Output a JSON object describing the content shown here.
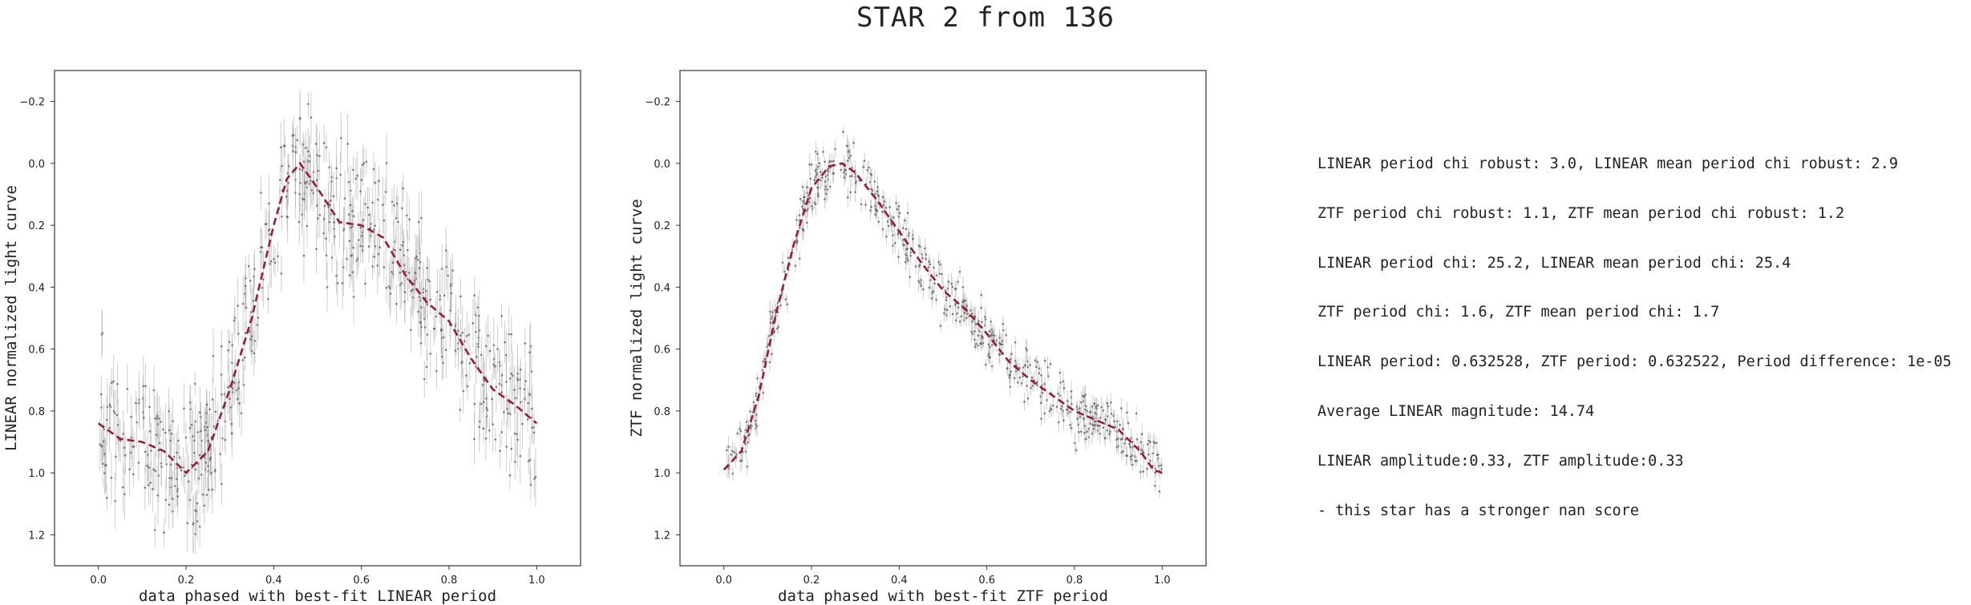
{
  "figure": {
    "title": "STAR 2 from 136"
  },
  "chart_data": [
    {
      "type": "scatter",
      "xlabel": "data phased with best-fit LINEAR period",
      "ylabel": "LINEAR normalized light curve",
      "xlim": [
        -0.1,
        1.1
      ],
      "ylim": [
        1.3,
        -0.3
      ],
      "y_inverted": true,
      "x_ticks": [
        "0.0",
        "0.2",
        "0.4",
        "0.6",
        "0.8",
        "1.0"
      ],
      "y_ticks": [
        "−0.2",
        "0.0",
        "0.2",
        "0.4",
        "0.6",
        "0.8",
        "1.0",
        "1.2"
      ],
      "grid": false,
      "colors": {
        "points": "#555555",
        "errorbars": "#aaaaaa",
        "fit": "#9b1b30"
      },
      "fit_curve": {
        "x": [
          0.0,
          0.05,
          0.1,
          0.15,
          0.2,
          0.25,
          0.3,
          0.35,
          0.4,
          0.43,
          0.46,
          0.5,
          0.55,
          0.6,
          0.65,
          0.7,
          0.75,
          0.8,
          0.85,
          0.9,
          0.95,
          1.0
        ],
        "y": [
          0.84,
          0.89,
          0.9,
          0.93,
          1.0,
          0.93,
          0.73,
          0.5,
          0.2,
          0.05,
          0.0,
          0.08,
          0.19,
          0.2,
          0.24,
          0.36,
          0.45,
          0.51,
          0.63,
          0.73,
          0.78,
          0.84
        ]
      },
      "scatter_band": {
        "x": [
          0.0,
          0.05,
          0.1,
          0.15,
          0.2,
          0.25,
          0.3,
          0.35,
          0.4,
          0.43,
          0.46,
          0.5,
          0.55,
          0.6,
          0.65,
          0.7,
          0.75,
          0.8,
          0.85,
          0.9,
          0.95,
          1.0
        ],
        "y": [
          0.84,
          0.89,
          0.9,
          0.93,
          1.0,
          0.93,
          0.73,
          0.5,
          0.2,
          0.05,
          0.0,
          0.08,
          0.19,
          0.2,
          0.24,
          0.36,
          0.45,
          0.51,
          0.63,
          0.73,
          0.78,
          0.84
        ],
        "spread": 0.12,
        "count": 650
      }
    },
    {
      "type": "scatter",
      "xlabel": "data phased with best-fit ZTF period",
      "ylabel": "ZTF normalized light curve",
      "xlim": [
        -0.1,
        1.1
      ],
      "ylim": [
        1.3,
        -0.3
      ],
      "y_inverted": true,
      "x_ticks": [
        "0.0",
        "0.2",
        "0.4",
        "0.6",
        "0.8",
        "1.0"
      ],
      "y_ticks": [
        "−0.2",
        "0.0",
        "0.2",
        "0.4",
        "0.6",
        "0.8",
        "1.0",
        "1.2"
      ],
      "grid": false,
      "colors": {
        "points": "#555555",
        "errorbars": "#aaaaaa",
        "fit": "#9b1b30"
      },
      "fit_curve": {
        "x": [
          0.0,
          0.04,
          0.08,
          0.12,
          0.16,
          0.2,
          0.24,
          0.27,
          0.3,
          0.35,
          0.4,
          0.45,
          0.5,
          0.55,
          0.6,
          0.65,
          0.7,
          0.75,
          0.8,
          0.85,
          0.9,
          0.95,
          0.98,
          1.0
        ],
        "y": [
          0.99,
          0.93,
          0.75,
          0.48,
          0.26,
          0.08,
          0.01,
          0.0,
          0.03,
          0.12,
          0.22,
          0.32,
          0.41,
          0.47,
          0.55,
          0.64,
          0.7,
          0.75,
          0.8,
          0.83,
          0.86,
          0.93,
          0.99,
          1.0
        ]
      },
      "scatter_band": {
        "x": [
          0.0,
          0.04,
          0.08,
          0.12,
          0.16,
          0.2,
          0.24,
          0.27,
          0.3,
          0.35,
          0.4,
          0.45,
          0.5,
          0.55,
          0.6,
          0.65,
          0.7,
          0.75,
          0.8,
          0.85,
          0.9,
          0.95,
          0.98,
          1.0
        ],
        "y": [
          0.99,
          0.93,
          0.75,
          0.48,
          0.26,
          0.08,
          0.01,
          0.0,
          0.03,
          0.12,
          0.22,
          0.32,
          0.41,
          0.47,
          0.55,
          0.64,
          0.7,
          0.75,
          0.8,
          0.83,
          0.86,
          0.93,
          0.99,
          1.0
        ],
        "spread": 0.045,
        "count": 650
      }
    }
  ],
  "info_lines": [
    "LINEAR period chi robust: 3.0, LINEAR mean period chi robust: 2.9",
    "ZTF period chi robust: 1.1, ZTF mean period chi robust: 1.2",
    "LINEAR period chi: 25.2, LINEAR mean period chi: 25.4",
    "ZTF period chi: 1.6, ZTF mean period chi: 1.7",
    "LINEAR period: 0.632528, ZTF period: 0.632522, Period difference: 1e-05",
    "Average LINEAR magnitude: 14.74",
    "LINEAR amplitude:0.33, ZTF amplitude:0.33",
    "- this star has a stronger nan score"
  ]
}
